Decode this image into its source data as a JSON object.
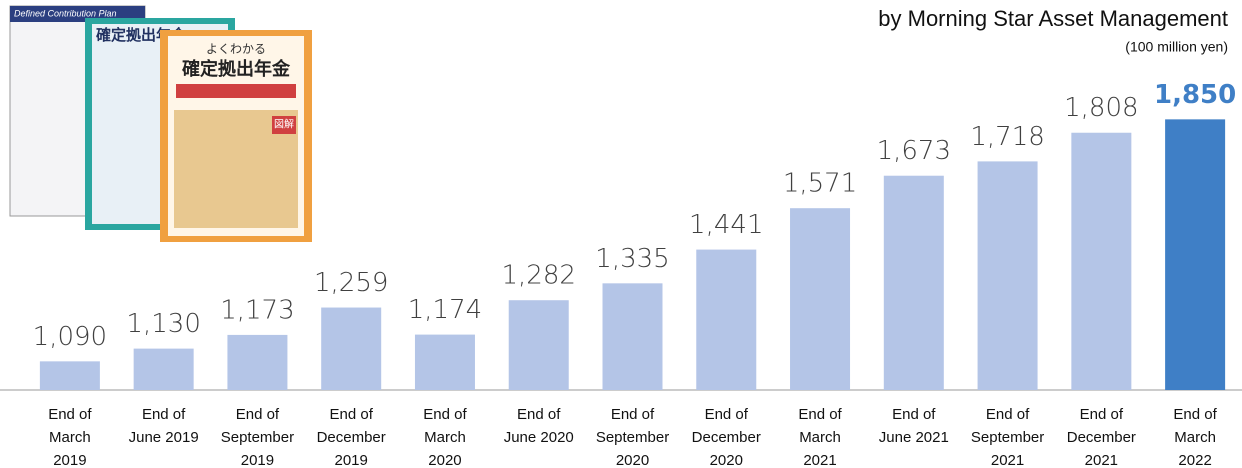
{
  "chart_data": {
    "type": "bar",
    "subtitle": "by Morning Star Asset Management",
    "unit_label": "(100 million yen)",
    "categories": [
      "End of\nMarch\n2019",
      "End of\nJune 2019",
      "End of\nSeptember\n2019",
      "End of\nDecember\n2019",
      "End of\nMarch\n2020",
      "End of\nJune 2020",
      "End of\nSeptember\n2020",
      "End of\nDecember\n2020",
      "End of\nMarch\n2021",
      "End of\nJune 2021",
      "End of\nSeptember\n2021",
      "End of\nDecember\n2021",
      "End of\nMarch\n2022"
    ],
    "values": [
      1090,
      1130,
      1173,
      1259,
      1174,
      1282,
      1335,
      1441,
      1571,
      1673,
      1718,
      1808,
      1850
    ],
    "value_labels": [
      "1,090",
      "1,130",
      "1,173",
      "1,259",
      "1,174",
      "1,282",
      "1,335",
      "1,441",
      "1,571",
      "1,673",
      "1,718",
      "1,808",
      "1,850"
    ],
    "colors": [
      "#b4c5e7",
      "#b4c5e7",
      "#b4c5e7",
      "#b4c5e7",
      "#b4c5e7",
      "#b4c5e7",
      "#b4c5e7",
      "#b4c5e7",
      "#b4c5e7",
      "#b4c5e7",
      "#b4c5e7",
      "#b4c5e7",
      "#3f7fc6"
    ],
    "ylim": [
      1000,
      2000
    ]
  },
  "illustration": {
    "texts": [
      "Defined Contribution Plan",
      "確定拠出年金",
      "よくわかる",
      "図解"
    ]
  }
}
